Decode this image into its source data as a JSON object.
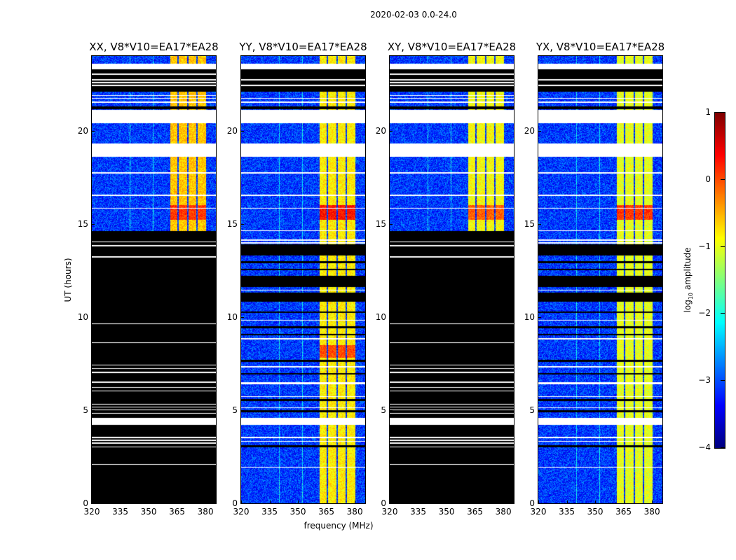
{
  "chart_data": {
    "type": "heatmap",
    "title": "2020-02-03 0.0-24.0",
    "xlabel": "frequency (MHz)",
    "ylabel": "UT (hours)",
    "xlim": [
      320,
      385.5
    ],
    "ylim": [
      0,
      24
    ],
    "xticks": [
      320,
      335,
      350,
      365,
      380
    ],
    "yticks": [
      0,
      5,
      10,
      15,
      20
    ],
    "colormap": "jet",
    "colorbar": {
      "label": "log10 amplitude",
      "label_base": "log",
      "label_sub": "10",
      "label_rest": " amplitude",
      "range": [
        -4,
        1
      ],
      "ticks": [
        -4,
        -3,
        -2,
        -1,
        0,
        1
      ]
    },
    "band_mhz": [
      [
        361.5,
        365.3
      ],
      [
        365.9,
        370.3
      ],
      [
        370.9,
        375.3
      ],
      [
        375.9,
        380.5
      ]
    ],
    "background_level": -3.1,
    "panels": [
      {
        "title": "XX, V8*V10=EA17*EA28",
        "band_level": -0.6,
        "flare": [
          [
            15.2,
            16.0,
            0.1
          ]
        ],
        "black_hours": [
          [
            0,
            14.6
          ],
          [
            21.15,
            21.3
          ],
          [
            22.1,
            23.3
          ]
        ],
        "white_hours": [
          [
            2.05,
            2.1
          ],
          [
            3.0,
            3.05
          ],
          [
            3.2,
            3.25
          ],
          [
            3.35,
            3.4
          ],
          [
            3.5,
            3.55
          ],
          [
            4.2,
            4.6
          ],
          [
            4.8,
            4.85
          ],
          [
            5.0,
            5.05
          ],
          [
            5.15,
            5.2
          ],
          [
            5.3,
            5.35
          ],
          [
            6.0,
            6.05
          ],
          [
            6.2,
            6.25
          ],
          [
            6.45,
            6.55
          ],
          [
            7.0,
            7.05
          ],
          [
            7.2,
            7.25
          ],
          [
            7.4,
            7.45
          ],
          [
            8.6,
            8.65
          ],
          [
            9.6,
            9.65
          ],
          [
            13.2,
            13.25
          ],
          [
            13.8,
            13.85
          ],
          [
            14.0,
            14.05
          ],
          [
            15.8,
            15.85
          ],
          [
            16.5,
            16.55
          ],
          [
            17.7,
            17.75
          ],
          [
            18.6,
            19.3
          ],
          [
            20.4,
            21.1
          ],
          [
            21.5,
            21.55
          ],
          [
            21.7,
            21.75
          ],
          [
            21.85,
            21.9
          ],
          [
            22.4,
            22.45
          ],
          [
            22.55,
            22.6
          ],
          [
            22.7,
            22.75
          ],
          [
            23.0,
            23.05
          ],
          [
            23.3,
            23.6
          ]
        ]
      },
      {
        "title": "YY, V8*V10=EA17*EA28",
        "band_level": -0.8,
        "flare": [
          [
            15.2,
            16.0,
            0.3
          ],
          [
            7.8,
            8.5,
            0.0
          ]
        ],
        "black_hours": [
          [
            3.0,
            3.1
          ],
          [
            4.9,
            5.0
          ],
          [
            5.5,
            5.6
          ],
          [
            6.9,
            7.0
          ],
          [
            7.6,
            7.7
          ],
          [
            9.0,
            9.1
          ],
          [
            9.4,
            9.5
          ],
          [
            10.2,
            10.3
          ],
          [
            10.8,
            11.3
          ],
          [
            11.6,
            12.2
          ],
          [
            12.5,
            12.6
          ],
          [
            12.9,
            13.0
          ],
          [
            13.3,
            13.9
          ],
          [
            21.15,
            21.3
          ],
          [
            22.1,
            23.3
          ]
        ],
        "white_hours": [
          [
            1.9,
            1.95
          ],
          [
            3.3,
            3.35
          ],
          [
            3.5,
            3.55
          ],
          [
            4.2,
            4.6
          ],
          [
            5.1,
            5.15
          ],
          [
            5.7,
            5.75
          ],
          [
            6.4,
            6.5
          ],
          [
            7.3,
            7.35
          ],
          [
            8.8,
            8.85
          ],
          [
            9.8,
            9.85
          ],
          [
            11.4,
            11.45
          ],
          [
            13.95,
            14.0
          ],
          [
            14.1,
            14.15
          ],
          [
            14.6,
            14.65
          ],
          [
            15.8,
            15.85
          ],
          [
            16.5,
            16.55
          ],
          [
            17.7,
            17.75
          ],
          [
            18.6,
            19.3
          ],
          [
            20.4,
            21.1
          ],
          [
            21.5,
            21.55
          ],
          [
            21.7,
            21.75
          ],
          [
            22.4,
            22.45
          ],
          [
            22.7,
            22.75
          ],
          [
            23.3,
            23.6
          ]
        ]
      },
      {
        "title": "XY, V8*V10=EA17*EA28",
        "band_level": -0.9,
        "flare": [
          [
            15.2,
            16.0,
            -0.1
          ]
        ],
        "black_hours": [
          [
            0,
            14.6
          ],
          [
            21.15,
            21.3
          ],
          [
            22.1,
            23.3
          ]
        ],
        "white_hours": [
          [
            2.05,
            2.1
          ],
          [
            3.0,
            3.05
          ],
          [
            3.2,
            3.25
          ],
          [
            3.35,
            3.4
          ],
          [
            3.5,
            3.55
          ],
          [
            4.2,
            4.6
          ],
          [
            4.8,
            4.85
          ],
          [
            5.0,
            5.05
          ],
          [
            5.15,
            5.2
          ],
          [
            5.3,
            5.35
          ],
          [
            6.0,
            6.05
          ],
          [
            6.2,
            6.25
          ],
          [
            6.45,
            6.55
          ],
          [
            7.0,
            7.05
          ],
          [
            7.2,
            7.25
          ],
          [
            7.4,
            7.45
          ],
          [
            8.6,
            8.65
          ],
          [
            9.6,
            9.65
          ],
          [
            13.2,
            13.25
          ],
          [
            13.8,
            13.85
          ],
          [
            14.0,
            14.05
          ],
          [
            15.8,
            15.85
          ],
          [
            16.5,
            16.55
          ],
          [
            17.7,
            17.75
          ],
          [
            18.6,
            19.3
          ],
          [
            20.4,
            21.1
          ],
          [
            21.5,
            21.55
          ],
          [
            21.7,
            21.75
          ],
          [
            21.85,
            21.9
          ],
          [
            22.4,
            22.45
          ],
          [
            22.55,
            22.6
          ],
          [
            22.7,
            22.75
          ],
          [
            23.0,
            23.05
          ],
          [
            23.3,
            23.6
          ]
        ]
      },
      {
        "title": "YX, V8*V10=EA17*EA28",
        "band_level": -1.0,
        "flare": [
          [
            15.2,
            16.0,
            0.1
          ]
        ],
        "black_hours": [
          [
            3.0,
            3.1
          ],
          [
            4.9,
            5.0
          ],
          [
            5.5,
            5.6
          ],
          [
            6.9,
            7.0
          ],
          [
            7.6,
            7.7
          ],
          [
            9.0,
            9.1
          ],
          [
            9.4,
            9.5
          ],
          [
            10.2,
            10.3
          ],
          [
            10.8,
            11.3
          ],
          [
            11.6,
            12.2
          ],
          [
            12.5,
            12.6
          ],
          [
            12.9,
            13.0
          ],
          [
            13.3,
            13.9
          ],
          [
            21.15,
            21.3
          ],
          [
            22.1,
            23.3
          ]
        ],
        "white_hours": [
          [
            1.9,
            1.95
          ],
          [
            3.3,
            3.35
          ],
          [
            3.5,
            3.55
          ],
          [
            4.2,
            4.6
          ],
          [
            5.1,
            5.15
          ],
          [
            5.7,
            5.75
          ],
          [
            6.4,
            6.5
          ],
          [
            7.3,
            7.35
          ],
          [
            8.8,
            8.85
          ],
          [
            9.8,
            9.85
          ],
          [
            11.4,
            11.45
          ],
          [
            13.95,
            14.0
          ],
          [
            14.1,
            14.15
          ],
          [
            14.6,
            14.65
          ],
          [
            15.8,
            15.85
          ],
          [
            16.5,
            16.55
          ],
          [
            17.7,
            17.75
          ],
          [
            18.6,
            19.3
          ],
          [
            20.4,
            21.1
          ],
          [
            21.5,
            21.55
          ],
          [
            21.7,
            21.75
          ],
          [
            22.4,
            22.45
          ],
          [
            22.7,
            22.75
          ],
          [
            23.3,
            23.6
          ]
        ]
      }
    ]
  }
}
